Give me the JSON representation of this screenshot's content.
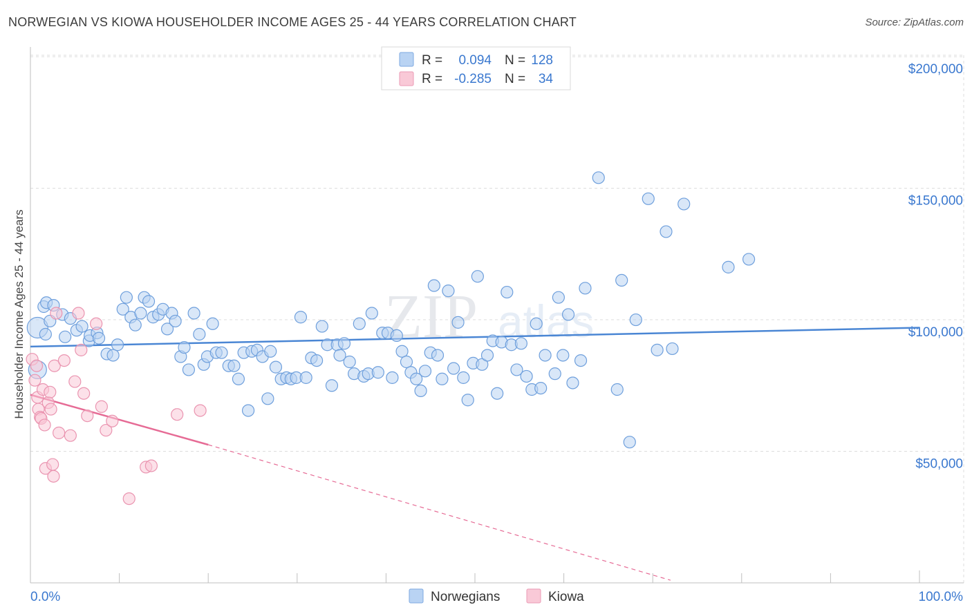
{
  "title": "NORWEGIAN VS KIOWA HOUSEHOLDER INCOME AGES 25 - 44 YEARS CORRELATION CHART",
  "source": "Source: ZipAtlas.com",
  "watermark": {
    "zip": "ZIP",
    "atlas": "atlas"
  },
  "legend_box": {
    "rows": [
      {
        "r_label": "R =",
        "r_value": "0.094",
        "n_label": "N =",
        "n_value": "128",
        "color": "#a9c8ef"
      },
      {
        "r_label": "R =",
        "r_value": "-0.285",
        "n_label": "N =",
        "n_value": "34",
        "color": "#f5b8cb"
      }
    ]
  },
  "bottom_legend": [
    {
      "label": "Norwegians",
      "color": "#a9c8ef"
    },
    {
      "label": "Kiowa",
      "color": "#f5b8cb"
    }
  ],
  "chart_data": {
    "type": "scatter",
    "xlabel": "",
    "ylabel": "Householder Income Ages 25 - 44 years",
    "xlim": [
      0,
      100
    ],
    "ylim": [
      0,
      210000
    ],
    "x_tick_labels": [
      "0.0%",
      "100.0%"
    ],
    "y_ticks": [
      {
        "value": 50000,
        "label": "$50,000"
      },
      {
        "value": 100000,
        "label": "$100,000"
      },
      {
        "value": 150000,
        "label": "$150,000"
      },
      {
        "value": 200000,
        "label": "$200,000"
      }
    ],
    "grid": "horizontal dashed",
    "colors": {
      "norwegians": "#4a86d4",
      "kiowa": "#e66b95",
      "axis_text": "#3a78cf"
    },
    "series": [
      {
        "name": "Norwegians",
        "trend": {
          "x": [
            0,
            100
          ],
          "y": [
            89800,
            97000
          ]
        },
        "points": [
          [
            0.8,
            97000
          ],
          [
            0.8,
            81000
          ],
          [
            1.5,
            105000
          ],
          [
            1.7,
            94500
          ],
          [
            1.8,
            106500
          ],
          [
            2.2,
            99500
          ],
          [
            2.6,
            105500
          ],
          [
            3.6,
            102000
          ],
          [
            3.9,
            93500
          ],
          [
            4.5,
            100500
          ],
          [
            5.2,
            96000
          ],
          [
            5.8,
            97500
          ],
          [
            6.6,
            92000
          ],
          [
            6.7,
            94000
          ],
          [
            7.5,
            95000
          ],
          [
            7.7,
            93000
          ],
          [
            8.6,
            87000
          ],
          [
            9.3,
            86500
          ],
          [
            9.8,
            90500
          ],
          [
            10.4,
            104000
          ],
          [
            10.8,
            108500
          ],
          [
            11.3,
            101000
          ],
          [
            11.8,
            98000
          ],
          [
            12.4,
            102500
          ],
          [
            12.8,
            108500
          ],
          [
            13.3,
            107000
          ],
          [
            13.8,
            101000
          ],
          [
            14.4,
            102000
          ],
          [
            14.9,
            104000
          ],
          [
            15.4,
            96500
          ],
          [
            15.9,
            102500
          ],
          [
            16.3,
            99500
          ],
          [
            16.9,
            86000
          ],
          [
            17.3,
            89500
          ],
          [
            17.8,
            81000
          ],
          [
            18.4,
            102500
          ],
          [
            19.0,
            94500
          ],
          [
            19.5,
            83000
          ],
          [
            19.9,
            86000
          ],
          [
            20.5,
            98500
          ],
          [
            20.9,
            87500
          ],
          [
            21.5,
            87500
          ],
          [
            22.3,
            82500
          ],
          [
            22.9,
            82500
          ],
          [
            23.4,
            77500
          ],
          [
            24.0,
            87500
          ],
          [
            24.5,
            65500
          ],
          [
            24.9,
            88000
          ],
          [
            25.5,
            88500
          ],
          [
            26.1,
            86000
          ],
          [
            26.7,
            70000
          ],
          [
            27.0,
            88000
          ],
          [
            27.6,
            82000
          ],
          [
            28.2,
            77500
          ],
          [
            28.8,
            78000
          ],
          [
            29.3,
            77500
          ],
          [
            29.9,
            78000
          ],
          [
            30.4,
            101000
          ],
          [
            31.0,
            78000
          ],
          [
            31.6,
            85500
          ],
          [
            32.2,
            84500
          ],
          [
            32.8,
            97500
          ],
          [
            33.4,
            90500
          ],
          [
            33.9,
            75000
          ],
          [
            34.5,
            90500
          ],
          [
            34.8,
            86500
          ],
          [
            35.3,
            91000
          ],
          [
            35.9,
            84000
          ],
          [
            36.4,
            79500
          ],
          [
            37.0,
            98500
          ],
          [
            37.5,
            78500
          ],
          [
            38.0,
            79500
          ],
          [
            38.4,
            102500
          ],
          [
            39.1,
            80000
          ],
          [
            39.6,
            95000
          ],
          [
            40.2,
            95000
          ],
          [
            40.7,
            78000
          ],
          [
            41.2,
            94000
          ],
          [
            41.8,
            88000
          ],
          [
            42.3,
            84000
          ],
          [
            42.8,
            80000
          ],
          [
            43.4,
            77500
          ],
          [
            43.9,
            73000
          ],
          [
            44.4,
            80500
          ],
          [
            45.0,
            87500
          ],
          [
            45.4,
            113000
          ],
          [
            45.8,
            86500
          ],
          [
            46.3,
            77500
          ],
          [
            47.0,
            111000
          ],
          [
            47.6,
            81500
          ],
          [
            48.1,
            99000
          ],
          [
            48.7,
            78000
          ],
          [
            49.2,
            69500
          ],
          [
            49.8,
            83500
          ],
          [
            50.3,
            116500
          ],
          [
            50.8,
            83000
          ],
          [
            51.4,
            86500
          ],
          [
            52.0,
            92000
          ],
          [
            52.5,
            72000
          ],
          [
            53.0,
            91500
          ],
          [
            53.6,
            110500
          ],
          [
            54.1,
            90500
          ],
          [
            54.7,
            81000
          ],
          [
            55.2,
            91000
          ],
          [
            55.8,
            78500
          ],
          [
            56.4,
            73500
          ],
          [
            56.9,
            98500
          ],
          [
            57.4,
            74000
          ],
          [
            57.9,
            86500
          ],
          [
            59.0,
            79500
          ],
          [
            59.4,
            108500
          ],
          [
            59.9,
            86500
          ],
          [
            60.5,
            102000
          ],
          [
            61.0,
            76000
          ],
          [
            61.9,
            84500
          ],
          [
            62.4,
            112000
          ],
          [
            63.9,
            154000
          ],
          [
            66.0,
            73500
          ],
          [
            66.5,
            115000
          ],
          [
            67.4,
            53500
          ],
          [
            68.1,
            100000
          ],
          [
            69.5,
            146000
          ],
          [
            70.5,
            88500
          ],
          [
            71.5,
            133500
          ],
          [
            72.2,
            89000
          ],
          [
            73.5,
            144000
          ],
          [
            78.5,
            120000
          ],
          [
            80.8,
            123000
          ]
        ]
      },
      {
        "name": "Kiowa",
        "trend": {
          "x": [
            0,
            20
          ],
          "y": [
            71500,
            52500
          ]
        },
        "trend_ext": {
          "x": [
            20,
            72
          ],
          "y": [
            52500,
            1000
          ]
        },
        "points": [
          [
            0.2,
            85000
          ],
          [
            0.5,
            77000
          ],
          [
            0.7,
            82500
          ],
          [
            0.8,
            70500
          ],
          [
            0.9,
            66000
          ],
          [
            1.1,
            63000
          ],
          [
            1.2,
            62500
          ],
          [
            1.4,
            73500
          ],
          [
            1.6,
            60000
          ],
          [
            1.7,
            43500
          ],
          [
            2.0,
            68500
          ],
          [
            2.2,
            72500
          ],
          [
            2.3,
            66000
          ],
          [
            2.5,
            45000
          ],
          [
            2.6,
            40500
          ],
          [
            2.7,
            82500
          ],
          [
            2.9,
            102500
          ],
          [
            3.2,
            57000
          ],
          [
            3.8,
            84500
          ],
          [
            4.5,
            56000
          ],
          [
            5.0,
            76500
          ],
          [
            5.4,
            102500
          ],
          [
            5.7,
            88500
          ],
          [
            6.0,
            72000
          ],
          [
            6.4,
            63500
          ],
          [
            7.4,
            98500
          ],
          [
            8.0,
            67000
          ],
          [
            8.5,
            58000
          ],
          [
            9.2,
            61500
          ],
          [
            11.1,
            32000
          ],
          [
            13.0,
            44000
          ],
          [
            13.6,
            44500
          ],
          [
            16.5,
            64000
          ],
          [
            19.1,
            65500
          ]
        ]
      }
    ]
  }
}
